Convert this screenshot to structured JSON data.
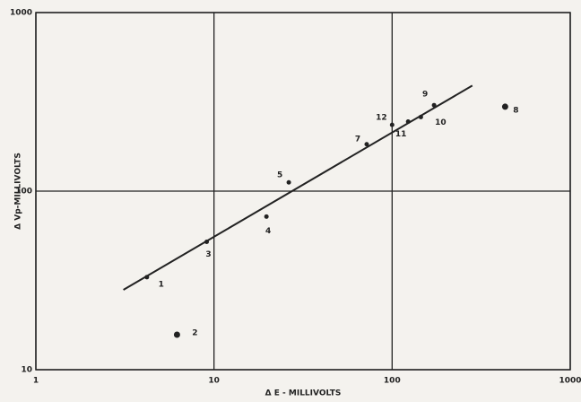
{
  "chart_data": {
    "type": "scatter",
    "x_label": "Δ E - MILLIVOLTS",
    "y_label": "Δ Vp-MILLIVOLTS",
    "log_x": true,
    "log_y": true,
    "grid": true,
    "color": "#222222",
    "x": [
      4.2,
      6.2,
      9.1,
      19.7,
      26.3,
      72,
      100,
      123,
      145,
      172,
      431
    ],
    "values": [
      33,
      15.7,
      52,
      72,
      112,
      183,
      235,
      245,
      260,
      303,
      297
    ],
    "labels": [
      "1",
      "2",
      "3",
      "4",
      "5",
      "7",
      "12",
      "11",
      "10",
      "9",
      "8"
    ],
    "fit_line": {
      "x": [
        3.1,
        282
      ],
      "y": [
        28,
        390
      ]
    },
    "xlim": [
      1,
      1000
    ],
    "ylim": [
      10,
      1000
    ],
    "xticks": [
      1,
      10,
      100,
      1000
    ],
    "yticks": [
      10,
      100,
      1000
    ]
  }
}
